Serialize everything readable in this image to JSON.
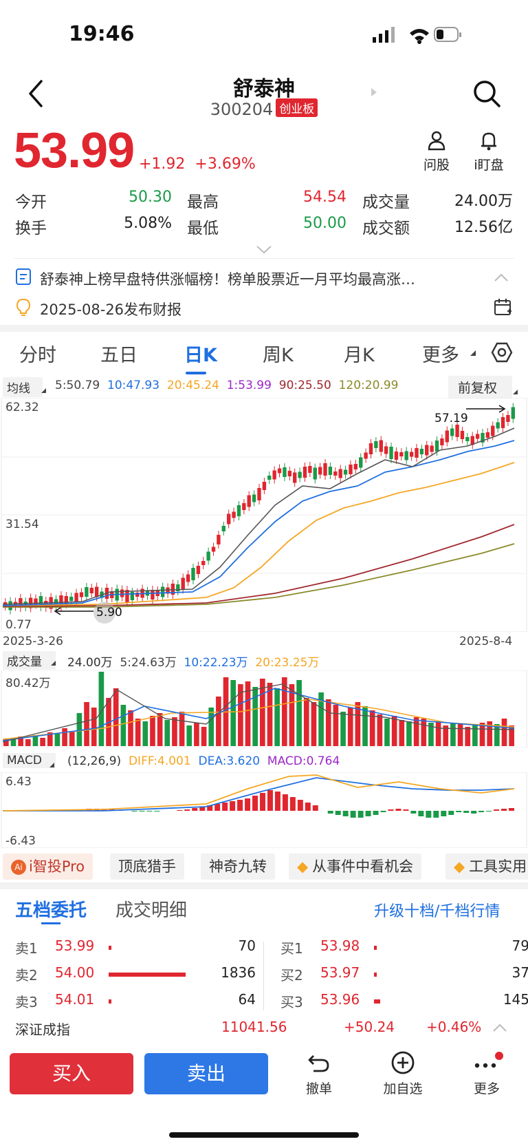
{
  "status_bar": {
    "time": "19:46"
  },
  "header": {
    "name": "舒泰神",
    "code": "300204",
    "board": "创业板"
  },
  "quote": {
    "price": "53.99",
    "change": "+1.92",
    "change_pct": "+3.69%"
  },
  "tools": [
    {
      "icon": "person-ask-icon",
      "label": "问股"
    },
    {
      "icon": "bell-icon",
      "label": "i盯盘"
    }
  ],
  "stats": {
    "open_label": "今开",
    "open": "50.30",
    "high_label": "最高",
    "high": "54.54",
    "volume_label": "成交量",
    "volume": "24.00万",
    "turnover_label": "换手",
    "turnover": "5.08%",
    "low_label": "最低",
    "low": "50.00",
    "amount_label": "成交额",
    "amount": "12.56亿"
  },
  "news": {
    "headline": "舒泰神上榜早盘特供涨幅榜！榜单股票近一月平均最高涨…",
    "report": "2025-08-26发布财报"
  },
  "tabs": [
    "分时",
    "五日",
    "日K",
    "周K",
    "月K",
    "更多"
  ],
  "active_tab": "日K",
  "ma": {
    "selector": "均线",
    "items": [
      {
        "label": "5:50.79",
        "color": "#444444"
      },
      {
        "label": "10:47.93",
        "color": "#1f6fe0"
      },
      {
        "label": "20:45.24",
        "color": "#f5a623"
      },
      {
        "label": "1:53.99",
        "color": "#9b27c7"
      },
      {
        "label": "90:25.50",
        "color": "#a0282e"
      },
      {
        "label": "120:20.99",
        "color": "#8a8a2a"
      }
    ],
    "adjust": "前复权"
  },
  "kline": {
    "y_top": "62.32",
    "y_mid": "31.54",
    "y_bottom": "0.77",
    "max_label": "57.19",
    "min_label": "5.90",
    "date_start": "2025-3-26",
    "date_end": "2025-8-4"
  },
  "volume": {
    "selector": "成交量",
    "values": "24.00万",
    "ma5": "5:24.63万",
    "ma10": "10:22.23万",
    "ma20": "20:23.25万",
    "y_top": "80.42万"
  },
  "macd": {
    "selector": "MACD",
    "params": "(12,26,9)",
    "diff": "DIFF:4.001",
    "dea": "DEA:3.620",
    "macd": "MACD:0.764",
    "y_top": "6.43",
    "y_bottom": "-6.43"
  },
  "chips": [
    "i智投Pro",
    "顶底猎手",
    "神奇九转",
    "从事件中看机会",
    "工具实用"
  ],
  "order_tabs": {
    "active": "五档委托",
    "other": "成交明细",
    "upgrade": "升级十档/千档行情"
  },
  "sells": [
    {
      "label": "卖1",
      "price": "53.99",
      "qty": "70",
      "bar": 0.04
    },
    {
      "label": "卖2",
      "price": "54.00",
      "qty": "1836",
      "bar": 1.0
    },
    {
      "label": "卖3",
      "price": "54.01",
      "qty": "64",
      "bar": 0.04
    }
  ],
  "buys": [
    {
      "label": "买1",
      "price": "53.98",
      "qty": "79",
      "bar": 0.04
    },
    {
      "label": "买2",
      "price": "53.97",
      "qty": "37",
      "bar": 0.02
    },
    {
      "label": "买3",
      "price": "53.96",
      "qty": "145",
      "bar": 0.08
    }
  ],
  "index": {
    "name": "深证成指",
    "value": "11041.56",
    "change": "+50.24",
    "pct": "+0.46%"
  },
  "bottom": {
    "buy": "买入",
    "sell": "卖出",
    "cancel": "撤单",
    "watch": "加自选",
    "more": "更多"
  }
}
